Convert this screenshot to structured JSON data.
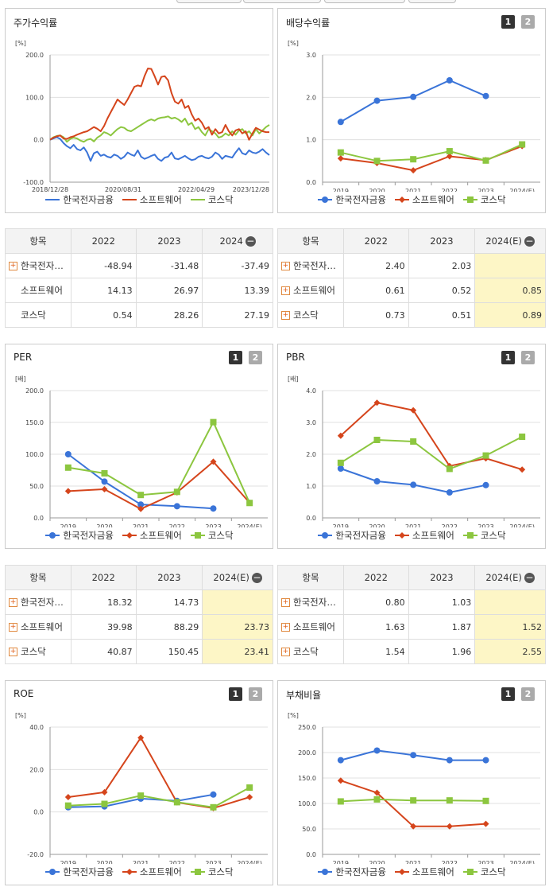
{
  "series_names": [
    "한국전자금융",
    "소프트웨어",
    "코스닥"
  ],
  "colors": {
    "s0": "#3a74d8",
    "s1": "#d5451c",
    "s2": "#8cc63f"
  },
  "buttons": {
    "one": "1",
    "two": "2"
  },
  "panels": {
    "stock": {
      "title": "주가수익률"
    },
    "dividend": {
      "title": "배당수익률"
    },
    "per": {
      "title": "PER"
    },
    "pbr": {
      "title": "PBR"
    },
    "roe": {
      "title": "ROE"
    },
    "debt": {
      "title": "부채비율"
    }
  },
  "chart_data": [
    {
      "id": "stock",
      "type": "line",
      "unit": "[%]",
      "ylim": [
        -100,
        200
      ],
      "yticks": [
        "200.0",
        "100.0",
        "0.0",
        "-100.0"
      ],
      "xticks": [
        "2018/12/28",
        "2020/08/31",
        "2022/04/29",
        "2023/12/28"
      ],
      "series": [
        {
          "name": "한국전자금융",
          "values": [
            0,
            3,
            6,
            2,
            -8,
            -15,
            -20,
            -12,
            -22,
            -25,
            -18,
            -30,
            -50,
            -32,
            -28,
            -38,
            -35,
            -40,
            -42,
            -35,
            -38,
            -45,
            -40,
            -30,
            -35,
            -38,
            -25,
            -40,
            -45,
            -42,
            -38,
            -35,
            -45,
            -50,
            -42,
            -40,
            -30,
            -44,
            -46,
            -42,
            -38,
            -44,
            -48,
            -46,
            -40,
            -38,
            -42,
            -44,
            -40,
            -30,
            -35,
            -45,
            -38,
            -40,
            -42,
            -30,
            -20,
            -32,
            -35,
            -25,
            -30,
            -32,
            -28,
            -22,
            -30,
            -36
          ]
        },
        {
          "name": "소프트웨어",
          "values": [
            0,
            5,
            8,
            10,
            3,
            2,
            6,
            8,
            12,
            15,
            18,
            20,
            25,
            30,
            26,
            20,
            32,
            50,
            65,
            80,
            95,
            88,
            82,
            95,
            110,
            125,
            128,
            126,
            150,
            168,
            167,
            150,
            130,
            148,
            150,
            140,
            110,
            90,
            85,
            95,
            75,
            80,
            60,
            45,
            50,
            40,
            25,
            30,
            12,
            25,
            15,
            18,
            35,
            20,
            10,
            22,
            25,
            15,
            20,
            0,
            15,
            28,
            24,
            20,
            18,
            18
          ]
        },
        {
          "name": "코스닥",
          "values": [
            0,
            6,
            9,
            10,
            6,
            -5,
            2,
            5,
            3,
            -2,
            -5,
            0,
            2,
            -4,
            5,
            10,
            18,
            15,
            10,
            18,
            25,
            30,
            28,
            22,
            20,
            25,
            30,
            35,
            40,
            45,
            48,
            45,
            50,
            52,
            53,
            55,
            50,
            52,
            48,
            42,
            50,
            35,
            40,
            25,
            30,
            18,
            10,
            25,
            20,
            15,
            5,
            8,
            15,
            10,
            20,
            12,
            22,
            25,
            15,
            20,
            10,
            25,
            15,
            22,
            30,
            35
          ]
        }
      ]
    },
    {
      "id": "dividend",
      "type": "line",
      "unit": "[%]",
      "ylim": [
        0,
        3
      ],
      "yticks": [
        "3.0",
        "2.0",
        "1.0",
        "0.0"
      ],
      "categories": [
        "2019",
        "2020",
        "2021",
        "2022",
        "2023",
        "2024(E)"
      ],
      "series": [
        {
          "name": "한국전자금융",
          "values": [
            1.42,
            1.92,
            2.01,
            2.4,
            2.03,
            null
          ]
        },
        {
          "name": "소프트웨어",
          "values": [
            0.56,
            0.45,
            0.28,
            0.61,
            0.52,
            0.85
          ]
        },
        {
          "name": "코스닥",
          "values": [
            0.7,
            0.5,
            0.54,
            0.73,
            0.51,
            0.89
          ]
        }
      ]
    },
    {
      "id": "per",
      "type": "line",
      "unit": "[배]",
      "ylim": [
        0,
        200
      ],
      "yticks": [
        "200.0",
        "150.0",
        "100.0",
        "50.0",
        "0.0"
      ],
      "categories": [
        "2019",
        "2020",
        "2021",
        "2022",
        "2023",
        "2024(E)"
      ],
      "series": [
        {
          "name": "한국전자금융",
          "values": [
            100,
            57,
            21,
            18.32,
            14.73,
            null
          ]
        },
        {
          "name": "소프트웨어",
          "values": [
            42,
            45,
            14,
            39.98,
            88.29,
            23.73
          ]
        },
        {
          "name": "코스닥",
          "values": [
            79,
            70,
            36,
            40.87,
            150.45,
            23.41
          ]
        }
      ]
    },
    {
      "id": "pbr",
      "type": "line",
      "unit": "[배]",
      "ylim": [
        0,
        4
      ],
      "yticks": [
        "4.0",
        "3.0",
        "2.0",
        "1.0",
        "0.0"
      ],
      "categories": [
        "2019",
        "2020",
        "2021",
        "2022",
        "2023",
        "2024(E)"
      ],
      "series": [
        {
          "name": "한국전자금융",
          "values": [
            1.55,
            1.15,
            1.04,
            0.8,
            1.03,
            null
          ]
        },
        {
          "name": "소프트웨어",
          "values": [
            2.58,
            3.62,
            3.38,
            1.63,
            1.87,
            1.52
          ]
        },
        {
          "name": "코스닥",
          "values": [
            1.73,
            2.45,
            2.4,
            1.54,
            1.96,
            2.55
          ]
        }
      ]
    },
    {
      "id": "roe",
      "type": "line",
      "unit": "[%]",
      "ylim": [
        -20,
        40
      ],
      "yticks": [
        "40.0",
        "20.0",
        "0.0",
        "-20.0"
      ],
      "categories": [
        "2019",
        "2020",
        "2021",
        "2022",
        "2023",
        "2024(E)"
      ],
      "series": [
        {
          "name": "한국전자금융",
          "values": [
            2.2,
            2.6,
            6.3,
            5.2,
            8.2,
            null
          ]
        },
        {
          "name": "소프트웨어",
          "values": [
            7.0,
            9.3,
            35.0,
            4.5,
            1.8,
            7.0
          ]
        },
        {
          "name": "코스닥",
          "values": [
            3.0,
            3.8,
            7.7,
            4.6,
            2.2,
            11.5
          ]
        }
      ]
    },
    {
      "id": "debt",
      "type": "line",
      "unit": "[%]",
      "ylim": [
        0,
        250
      ],
      "yticks": [
        "250.0",
        "200.0",
        "150.0",
        "100.0",
        "50.0",
        "0.0"
      ],
      "categories": [
        "2019",
        "2020",
        "2021",
        "2022",
        "2023",
        "2024(E)"
      ],
      "series": [
        {
          "name": "한국전자금융",
          "values": [
            185,
            204,
            195,
            185,
            185,
            null
          ]
        },
        {
          "name": "소프트웨어",
          "values": [
            145,
            121,
            55,
            55,
            60,
            null
          ]
        },
        {
          "name": "코스닥",
          "values": [
            104,
            108,
            106,
            106,
            105,
            null
          ]
        }
      ]
    }
  ],
  "tables": {
    "stock": {
      "headers": [
        "항목",
        "2022",
        "2023",
        "2024"
      ],
      "hl_last": false,
      "rows": [
        {
          "name": "한국전자…",
          "plus": true,
          "values": [
            "-48.94",
            "-31.48",
            "-37.49"
          ]
        },
        {
          "name": "소프트웨어",
          "plus": false,
          "values": [
            "14.13",
            "26.97",
            "13.39"
          ]
        },
        {
          "name": "코스닥",
          "plus": false,
          "values": [
            "0.54",
            "28.26",
            "27.19"
          ]
        }
      ]
    },
    "dividend": {
      "headers": [
        "항목",
        "2022",
        "2023",
        "2024(E)"
      ],
      "hl_last": true,
      "rows": [
        {
          "name": "한국전자…",
          "plus": true,
          "values": [
            "2.40",
            "2.03",
            ""
          ]
        },
        {
          "name": "소프트웨어",
          "plus": true,
          "values": [
            "0.61",
            "0.52",
            "0.85"
          ]
        },
        {
          "name": "코스닥",
          "plus": true,
          "values": [
            "0.73",
            "0.51",
            "0.89"
          ]
        }
      ]
    },
    "per": {
      "headers": [
        "항목",
        "2022",
        "2023",
        "2024(E)"
      ],
      "hl_last": true,
      "rows": [
        {
          "name": "한국전자…",
          "plus": true,
          "values": [
            "18.32",
            "14.73",
            ""
          ]
        },
        {
          "name": "소프트웨어",
          "plus": true,
          "values": [
            "39.98",
            "88.29",
            "23.73"
          ]
        },
        {
          "name": "코스닥",
          "plus": true,
          "values": [
            "40.87",
            "150.45",
            "23.41"
          ]
        }
      ]
    },
    "pbr": {
      "headers": [
        "항목",
        "2022",
        "2023",
        "2024(E)"
      ],
      "hl_last": true,
      "rows": [
        {
          "name": "한국전자…",
          "plus": true,
          "values": [
            "0.80",
            "1.03",
            ""
          ]
        },
        {
          "name": "소프트웨어",
          "plus": true,
          "values": [
            "1.63",
            "1.87",
            "1.52"
          ]
        },
        {
          "name": "코스닥",
          "plus": true,
          "values": [
            "1.54",
            "1.96",
            "2.55"
          ]
        }
      ]
    }
  }
}
